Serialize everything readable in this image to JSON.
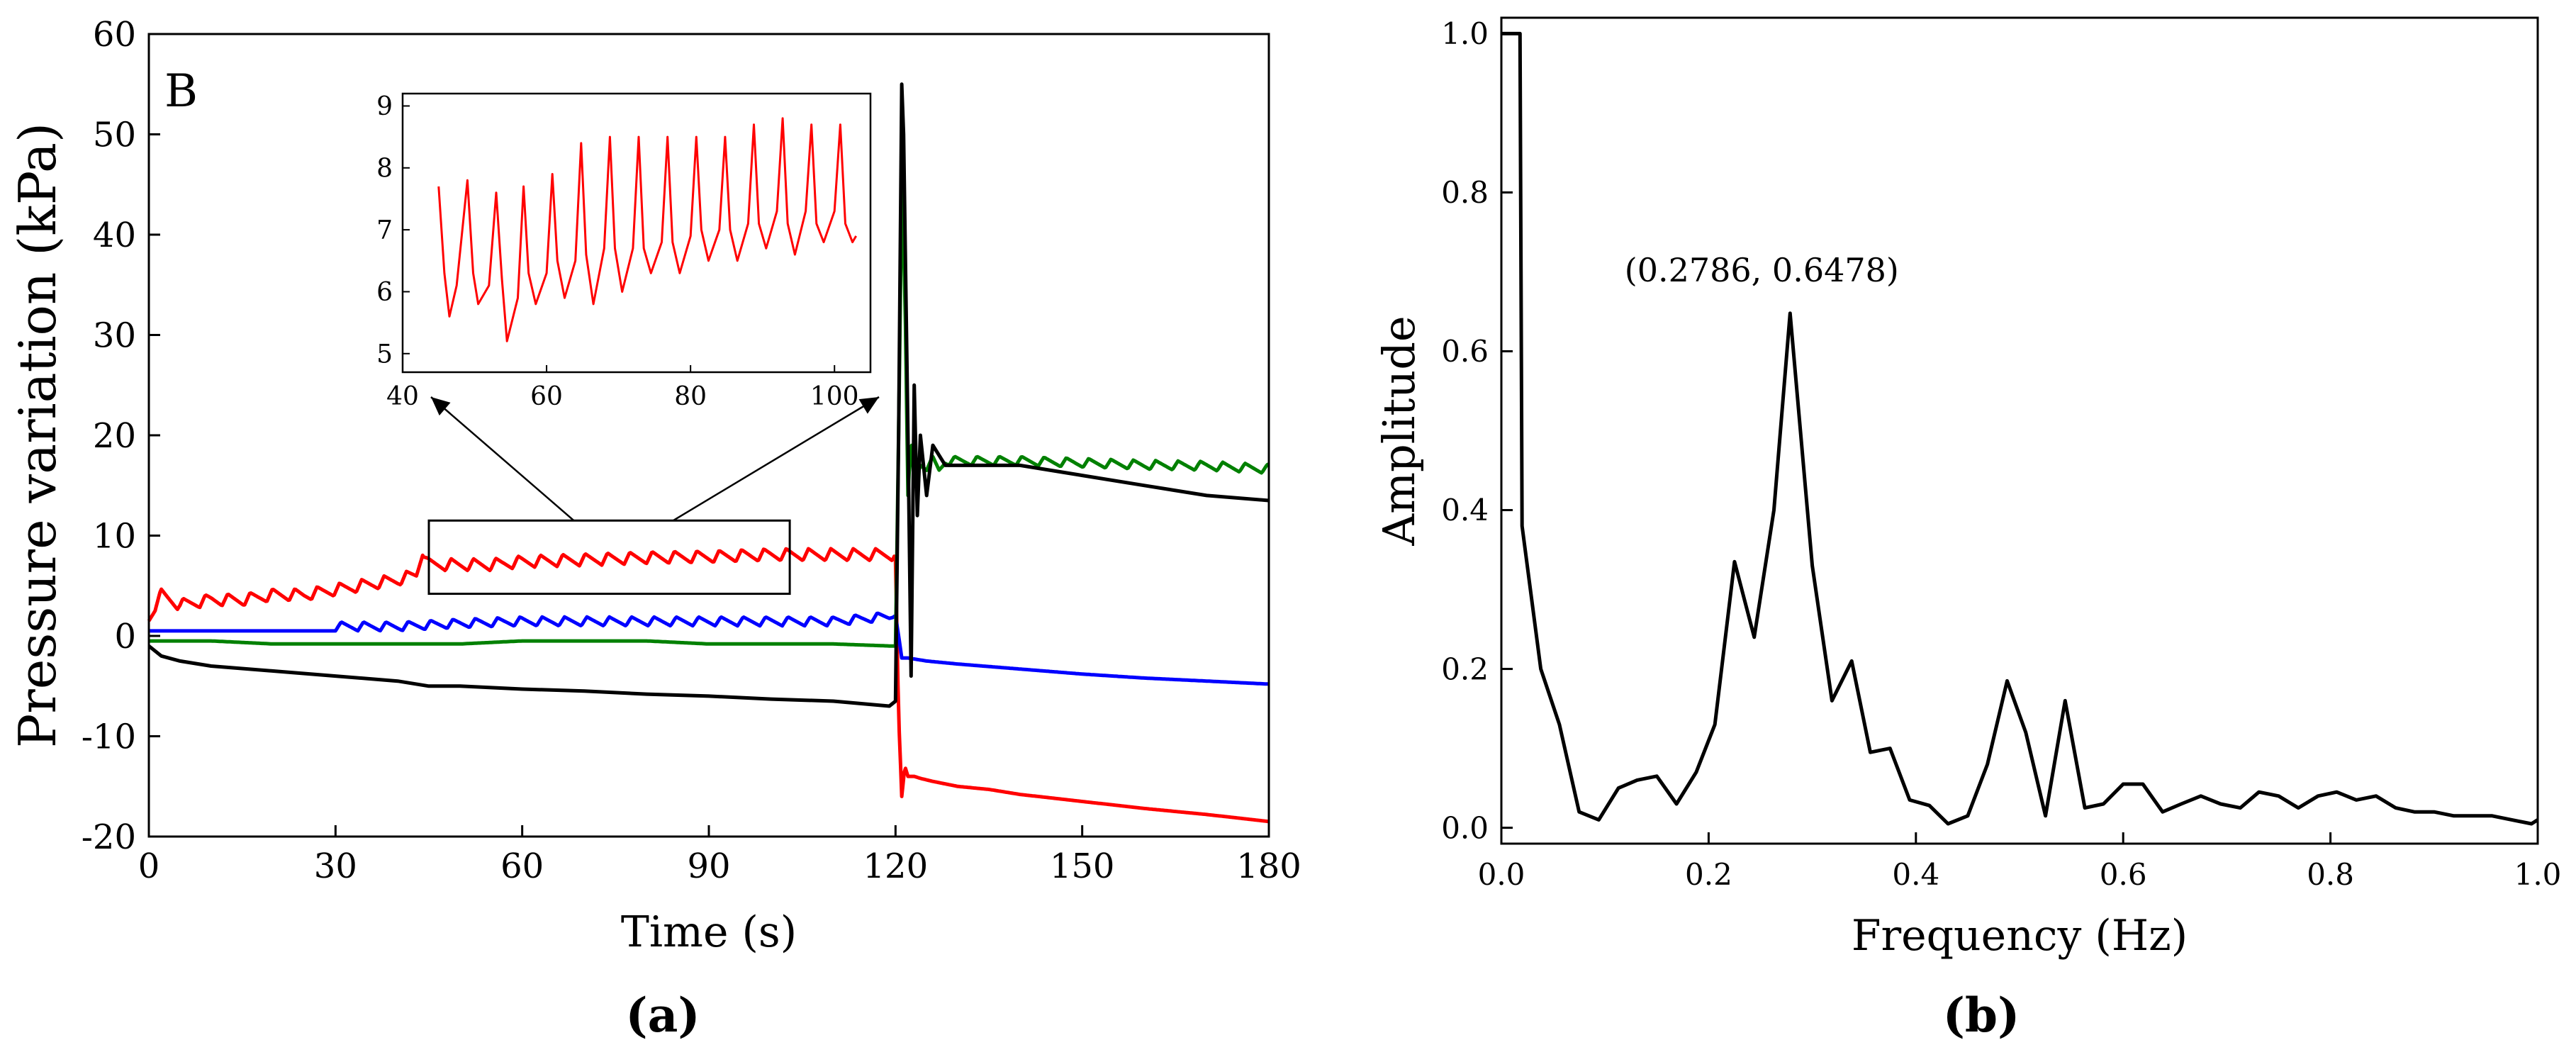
{
  "figure": {
    "caption_a": "(a)",
    "caption_b": "(b)"
  },
  "chart_data": [
    {
      "id": "panel-a",
      "type": "line",
      "panel_label": "B",
      "xlabel": "Time (s)",
      "ylabel": "Pressure variation (kPa)",
      "xlim": [
        0,
        180
      ],
      "ylim": [
        -20,
        60
      ],
      "xticks": [
        0,
        30,
        60,
        90,
        120,
        150,
        180
      ],
      "yticks": [
        -20,
        -10,
        0,
        10,
        20,
        30,
        40,
        50,
        60
      ],
      "grid": false,
      "series": [
        {
          "name": "red",
          "color": "#ff0000",
          "x": [
            0,
            1,
            2,
            5,
            10,
            15,
            20,
            25,
            30,
            35,
            40,
            43,
            44,
            45,
            48,
            55,
            60,
            70,
            80,
            90,
            100,
            110,
            115,
            119,
            120,
            120.5,
            121,
            121.5,
            122,
            123,
            124,
            126,
            130,
            135,
            140,
            150,
            160,
            170,
            180
          ],
          "y": [
            1.5,
            2.5,
            3.5,
            2.5,
            3,
            3,
            3.5,
            3.5,
            4,
            4.5,
            5,
            5.5,
            8,
            6.5,
            6.5,
            6.5,
            6.8,
            7,
            7.2,
            7.3,
            7.5,
            7.5,
            7.5,
            7.5,
            7.5,
            -8,
            -16,
            -13,
            -14,
            -14,
            -14.2,
            -14.5,
            -15,
            -15.3,
            -15.8,
            -16.5,
            -17.2,
            -17.8,
            -18.5
          ],
          "ripple_start": 1,
          "ripple_end": 120,
          "ripple_amp": 1.2,
          "ripple_period": 3.59
        },
        {
          "name": "blue",
          "color": "#0000ff",
          "x": [
            0,
            10,
            20,
            30,
            40,
            50,
            60,
            70,
            80,
            90,
            100,
            110,
            119,
            120,
            120.5,
            121,
            122,
            125,
            130,
            140,
            150,
            160,
            170,
            180
          ],
          "y": [
            0.5,
            0.5,
            0.5,
            0.5,
            0.5,
            0.8,
            1,
            1,
            1,
            1,
            1,
            1,
            1.5,
            2,
            0,
            -2.2,
            -2.2,
            -2.5,
            -2.8,
            -3.3,
            -3.8,
            -4.2,
            -4.5,
            -4.8
          ],
          "ripple_start": 30,
          "ripple_end": 120,
          "ripple_amp": 0.9,
          "ripple_period": 3.59
        },
        {
          "name": "green",
          "color": "#008000",
          "x": [
            0,
            10,
            20,
            30,
            40,
            50,
            60,
            70,
            80,
            90,
            100,
            110,
            119,
            120,
            120.5,
            121,
            121.5,
            122,
            122.5,
            123,
            124,
            125,
            126,
            127,
            128,
            130,
            135,
            140,
            150,
            160,
            170,
            180
          ],
          "y": [
            -0.5,
            -0.5,
            -0.8,
            -0.8,
            -0.8,
            -0.8,
            -0.5,
            -0.5,
            -0.5,
            -0.8,
            -0.8,
            -0.8,
            -1,
            -1,
            20,
            45,
            35,
            14,
            20,
            15,
            17,
            16.5,
            17,
            16,
            17,
            17,
            17,
            17,
            16.8,
            16.6,
            16.5,
            16.2
          ],
          "ripple_start": 125,
          "ripple_end": 180,
          "ripple_amp": 0.9,
          "ripple_period": 3.59
        },
        {
          "name": "black",
          "color": "#000000",
          "x": [
            0,
            2,
            5,
            10,
            20,
            30,
            40,
            45,
            50,
            60,
            70,
            80,
            90,
            100,
            110,
            119,
            120,
            120.5,
            121,
            121.3,
            122,
            122.5,
            123,
            123.5,
            124,
            125,
            126,
            128,
            130,
            140,
            150,
            160,
            170,
            180
          ],
          "y": [
            -1,
            -2,
            -2.5,
            -3,
            -3.5,
            -4,
            -4.5,
            -5,
            -5,
            -5.3,
            -5.5,
            -5.8,
            -6,
            -6.3,
            -6.5,
            -7,
            -6.5,
            20,
            55,
            50,
            20,
            -4,
            25,
            12,
            20,
            14,
            19,
            17,
            17,
            17,
            16,
            15,
            14,
            13.5
          ]
        }
      ],
      "highlight_box": {
        "x": [
          45,
          103
        ],
        "y": [
          4.2,
          11.5
        ]
      },
      "inset": {
        "type": "line",
        "xlim": [
          40,
          105
        ],
        "ylim": [
          4.7,
          9.2
        ],
        "xticks": [
          40,
          60,
          80,
          100
        ],
        "yticks": [
          5,
          6,
          7,
          8,
          9
        ],
        "series": [
          {
            "name": "red-zoom",
            "color": "#ff0000",
            "x": [
              45,
              45.8,
              46.5,
              47.5,
              49,
              49.8,
              50.5,
              52,
              53,
              53.8,
              54.5,
              56,
              56.8,
              57.5,
              58.5,
              60,
              60.8,
              61.5,
              62.5,
              64,
              64.8,
              65.5,
              66.5,
              68,
              68.8,
              69.5,
              70.5,
              72,
              72.8,
              73.5,
              74.5,
              76,
              76.8,
              77.5,
              78.5,
              80,
              80.8,
              81.5,
              82.5,
              84,
              84.8,
              85.5,
              86.5,
              88,
              88.8,
              89.5,
              90.5,
              92,
              92.8,
              93.5,
              94.5,
              96,
              96.8,
              97.5,
              98.5,
              100,
              100.8,
              101.5,
              102.5,
              103
            ],
            "y": [
              7.7,
              6.3,
              5.6,
              6.1,
              7.8,
              6.3,
              5.8,
              6.1,
              7.6,
              6.2,
              5.2,
              5.9,
              7.7,
              6.3,
              5.8,
              6.3,
              7.9,
              6.5,
              5.9,
              6.5,
              8.4,
              6.6,
              5.8,
              6.7,
              8.5,
              6.7,
              6.0,
              6.7,
              8.5,
              6.7,
              6.3,
              6.8,
              8.5,
              6.8,
              6.3,
              6.9,
              8.5,
              7.0,
              6.5,
              7.0,
              8.5,
              7.0,
              6.5,
              7.1,
              8.7,
              7.1,
              6.7,
              7.3,
              8.8,
              7.1,
              6.6,
              7.3,
              8.7,
              7.1,
              6.8,
              7.3,
              8.7,
              7.1,
              6.8,
              6.9
            ]
          }
        ]
      }
    },
    {
      "id": "panel-b",
      "type": "line",
      "xlabel": "Frequency (Hz)",
      "ylabel": "Amplitude",
      "xlim": [
        0,
        1.0
      ],
      "ylim": [
        -0.02,
        1.02
      ],
      "xticks": [
        0.0,
        0.2,
        0.4,
        0.6,
        0.8,
        1.0
      ],
      "yticks": [
        0.0,
        0.2,
        0.4,
        0.6,
        0.8,
        1.0
      ],
      "xtick_labels": [
        "0.0",
        "0.2",
        "0.4",
        "0.6",
        "0.8",
        "1.0"
      ],
      "ytick_labels": [
        "0.0",
        "0.2",
        "0.4",
        "0.6",
        "0.8",
        "1.0"
      ],
      "grid": false,
      "series": [
        {
          "name": "spectrum",
          "color": "#000000",
          "x": [
            0.0,
            0.008,
            0.018,
            0.02,
            0.038,
            0.056,
            0.075,
            0.094,
            0.113,
            0.131,
            0.15,
            0.169,
            0.188,
            0.206,
            0.225,
            0.244,
            0.263,
            0.2786,
            0.3,
            0.319,
            0.338,
            0.356,
            0.375,
            0.394,
            0.413,
            0.431,
            0.45,
            0.469,
            0.488,
            0.506,
            0.525,
            0.544,
            0.563,
            0.581,
            0.6,
            0.619,
            0.638,
            0.656,
            0.675,
            0.694,
            0.713,
            0.731,
            0.75,
            0.769,
            0.788,
            0.806,
            0.825,
            0.844,
            0.863,
            0.881,
            0.9,
            0.919,
            0.938,
            0.956,
            0.975,
            0.994,
            1.0
          ],
          "y": [
            1.0,
            1.0,
            1.0,
            0.38,
            0.2,
            0.13,
            0.02,
            0.01,
            0.05,
            0.06,
            0.065,
            0.03,
            0.07,
            0.13,
            0.335,
            0.24,
            0.4,
            0.6478,
            0.33,
            0.16,
            0.21,
            0.095,
            0.1,
            0.035,
            0.028,
            0.005,
            0.015,
            0.08,
            0.185,
            0.12,
            0.015,
            0.16,
            0.025,
            0.03,
            0.055,
            0.055,
            0.02,
            0.03,
            0.04,
            0.03,
            0.025,
            0.045,
            0.04,
            0.025,
            0.04,
            0.045,
            0.035,
            0.04,
            0.025,
            0.02,
            0.02,
            0.015,
            0.015,
            0.015,
            0.01,
            0.005,
            0.01
          ]
        }
      ],
      "annotation": {
        "text": "(0.2786, 0.6478)",
        "x": 0.2786,
        "y": 0.6478
      }
    }
  ]
}
